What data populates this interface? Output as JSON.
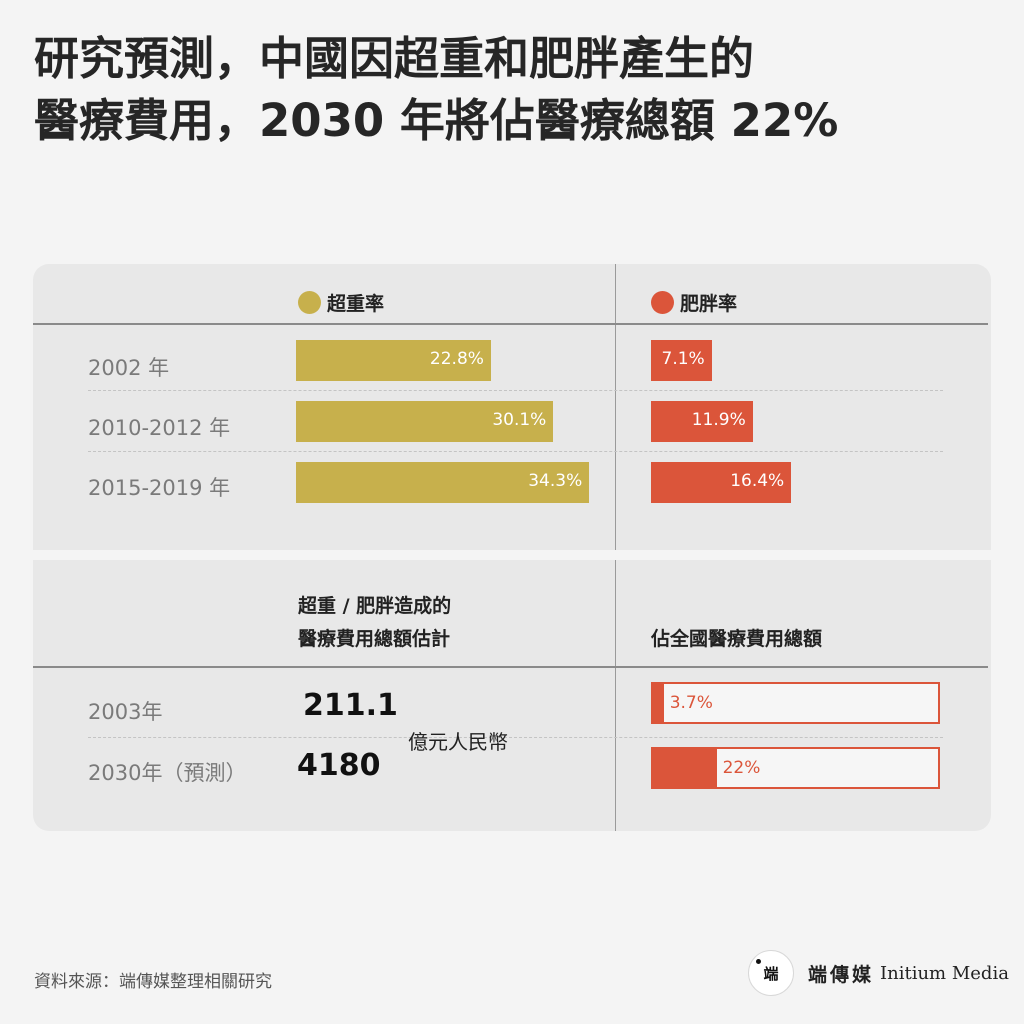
{
  "title_lines": [
    "研究預測，中國因超重和肥胖產生的",
    "醫療費用，2030 年將佔醫療總額 22%"
  ],
  "colors": {
    "overweight": "#c7b04c",
    "obesity": "#db553a",
    "background": "#f4f4f4",
    "panel": "#e8e8e8"
  },
  "chart_data": [
    {
      "type": "bar",
      "categories": [
        "2002 年",
        "2010-2012 年",
        "2015-2019 年"
      ],
      "series": [
        {
          "name": "超重率",
          "values": [
            22.8,
            30.1,
            34.3
          ],
          "labels": [
            "22.8%",
            "30.1%",
            "34.3%"
          ]
        },
        {
          "name": "肥胖率",
          "values": [
            7.1,
            11.9,
            16.4
          ],
          "labels": [
            "7.1%",
            "11.9%",
            "16.4%"
          ]
        }
      ]
    },
    {
      "type": "table",
      "categories": [
        "2003年",
        "2030年（預測）"
      ],
      "cost_header": [
        "超重 / 肥胖造成的",
        "醫療費用總額估計"
      ],
      "cost_values": [
        "211.1",
        "4180"
      ],
      "cost_unit": "億元人民幣",
      "share_header": "佔全國醫療費用總額",
      "share_values": [
        3.7,
        22
      ],
      "share_labels": [
        "3.7%",
        "22%"
      ]
    }
  ],
  "footer": {
    "source": "資料來源：端傳媒整理相關研究",
    "brand_zh": "端傳媒",
    "brand_en": "Initium Media",
    "logo_glyph": "端"
  }
}
